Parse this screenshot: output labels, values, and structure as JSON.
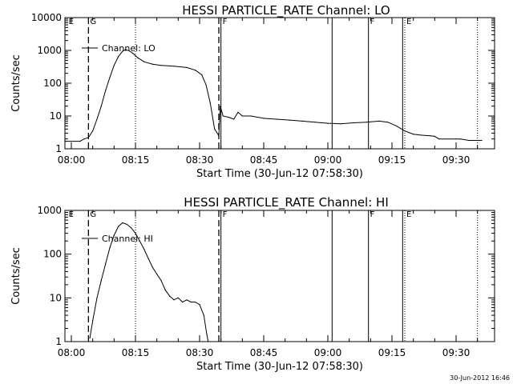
{
  "chart_data": [
    {
      "type": "line",
      "title": "HESSI PARTICLE_RATE Channel: LO",
      "xlabel": "Start Time (30-Jun-12 07:58:30)",
      "ylabel": "Counts/sec",
      "yscale": "log",
      "ylim": [
        1,
        10000
      ],
      "yticks": [
        "1",
        "10",
        "100",
        "1000",
        "10000"
      ],
      "xlim": [
        "07:58:30",
        "09:39:00"
      ],
      "xticks": [
        "08:00",
        "08:15",
        "08:30",
        "08:45",
        "09:00",
        "09:15",
        "09:30"
      ],
      "legend": {
        "entry": "Channel: LO",
        "placement": "top-left"
      },
      "series": [
        {
          "name": "Channel: LO",
          "points": [
            [
              "07:58:30",
              1.7
            ],
            [
              "08:02:00",
              1.7
            ],
            [
              "08:03:00",
              2.0
            ],
            [
              "08:04:00",
              2.2
            ],
            [
              "08:05:00",
              3.5
            ],
            [
              "08:06:00",
              8
            ],
            [
              "08:07:00",
              20
            ],
            [
              "08:08:00",
              60
            ],
            [
              "08:09:00",
              150
            ],
            [
              "08:10:00",
              350
            ],
            [
              "08:11:00",
              650
            ],
            [
              "08:12:00",
              950
            ],
            [
              "08:12:40",
              1050
            ],
            [
              "08:13:30",
              980
            ],
            [
              "08:14:30",
              800
            ],
            [
              "08:15:30",
              600
            ],
            [
              "08:17:00",
              450
            ],
            [
              "08:19:00",
              380
            ],
            [
              "08:21:00",
              350
            ],
            [
              "08:24:00",
              330
            ],
            [
              "08:27:00",
              300
            ],
            [
              "08:29:00",
              250
            ],
            [
              "08:30:30",
              180
            ],
            [
              "08:31:30",
              90
            ],
            [
              "08:32:30",
              25
            ],
            [
              "08:33:30",
              4
            ],
            [
              "08:34:30",
              2.5
            ],
            [
              "08:34:50",
              20
            ],
            [
              "08:35:30",
              10
            ],
            [
              "08:37:00",
              9
            ],
            [
              "08:38:00",
              8
            ],
            [
              "08:39:00",
              13
            ],
            [
              "08:40:00",
              10
            ],
            [
              "08:42:00",
              10
            ],
            [
              "08:45:00",
              8.5
            ],
            [
              "08:48:00",
              8
            ],
            [
              "08:51:00",
              7.5
            ],
            [
              "08:54:00",
              7
            ],
            [
              "08:57:00",
              6.5
            ],
            [
              "09:00:00",
              6
            ],
            [
              "09:03:00",
              5.8
            ],
            [
              "09:06:00",
              6.2
            ],
            [
              "09:09:00",
              6.5
            ],
            [
              "09:12:00",
              7
            ],
            [
              "09:14:00",
              6.5
            ],
            [
              "09:16:00",
              5
            ],
            [
              "09:18:00",
              3.5
            ],
            [
              "09:20:00",
              2.8
            ],
            [
              "09:22:00",
              2.6
            ],
            [
              "09:24:00",
              2.5
            ],
            [
              "09:25:00",
              2.4
            ],
            [
              "09:26:00",
              2.0
            ],
            [
              "09:30:00",
              2.0
            ],
            [
              "09:31:00",
              2.0
            ],
            [
              "09:33:00",
              1.8
            ],
            [
              "09:36:00",
              1.8
            ]
          ]
        }
      ],
      "markers": [
        {
          "time": "07:59:00",
          "style": "none",
          "label": "E"
        },
        {
          "time": "08:04:00",
          "style": "dashed",
          "label": "G"
        },
        {
          "time": "08:15:00",
          "style": "dotted",
          "label": ""
        },
        {
          "time": "08:34:30",
          "style": "dashed",
          "label": ""
        },
        {
          "time": "08:35:00",
          "style": "solid",
          "label": "F"
        },
        {
          "time": "09:01:00",
          "style": "solid",
          "label": ""
        },
        {
          "time": "09:09:30",
          "style": "solid",
          "label": "F"
        },
        {
          "time": "09:17:30",
          "style": "solid",
          "label": ""
        },
        {
          "time": "09:18:00",
          "style": "dotted",
          "label": "E"
        },
        {
          "time": "09:35:00",
          "style": "dotted",
          "label": ""
        }
      ]
    },
    {
      "type": "line",
      "title": "HESSI PARTICLE_RATE Channel: HI",
      "xlabel": "Start Time (30-Jun-12 07:58:30)",
      "ylabel": "Counts/sec",
      "yscale": "log",
      "ylim": [
        1,
        1000
      ],
      "yticks": [
        "1",
        "10",
        "100",
        "1000"
      ],
      "xlim": [
        "07:58:30",
        "09:39:00"
      ],
      "xticks": [
        "08:00",
        "08:15",
        "08:30",
        "08:45",
        "09:00",
        "09:15",
        "09:30"
      ],
      "legend": {
        "entry": "Channel: HI",
        "placement": "top-left"
      },
      "series": [
        {
          "name": "Channel: HI",
          "points": [
            [
              "08:04:20",
              1.2
            ],
            [
              "08:05:00",
              3
            ],
            [
              "08:06:00",
              10
            ],
            [
              "08:07:00",
              25
            ],
            [
              "08:08:00",
              60
            ],
            [
              "08:09:00",
              140
            ],
            [
              "08:10:00",
              270
            ],
            [
              "08:11:00",
              430
            ],
            [
              "08:12:00",
              520
            ],
            [
              "08:13:00",
              480
            ],
            [
              "08:14:00",
              400
            ],
            [
              "08:15:00",
              300
            ],
            [
              "08:16:00",
              200
            ],
            [
              "08:17:00",
              130
            ],
            [
              "08:18:00",
              80
            ],
            [
              "08:19:00",
              50
            ],
            [
              "08:20:00",
              35
            ],
            [
              "08:21:00",
              25
            ],
            [
              "08:22:00",
              15
            ],
            [
              "08:23:00",
              11
            ],
            [
              "08:24:00",
              9
            ],
            [
              "08:25:00",
              10
            ],
            [
              "08:26:00",
              8
            ],
            [
              "08:27:00",
              9
            ],
            [
              "08:28:00",
              8
            ],
            [
              "08:29:00",
              8
            ],
            [
              "08:30:00",
              7
            ],
            [
              "08:31:00",
              4
            ],
            [
              "08:31:40",
              1.5
            ],
            [
              "08:32:00",
              1.0
            ]
          ]
        }
      ],
      "markers": [
        {
          "time": "07:59:00",
          "style": "none",
          "label": "E"
        },
        {
          "time": "08:04:00",
          "style": "dashed",
          "label": "G"
        },
        {
          "time": "08:15:00",
          "style": "dotted",
          "label": ""
        },
        {
          "time": "08:34:30",
          "style": "dashed",
          "label": ""
        },
        {
          "time": "08:35:00",
          "style": "solid",
          "label": "F"
        },
        {
          "time": "09:01:00",
          "style": "solid",
          "label": ""
        },
        {
          "time": "09:09:30",
          "style": "solid",
          "label": "F"
        },
        {
          "time": "09:17:30",
          "style": "solid",
          "label": ""
        },
        {
          "time": "09:18:00",
          "style": "dotted",
          "label": "E"
        },
        {
          "time": "09:35:00",
          "style": "dotted",
          "label": ""
        }
      ]
    }
  ],
  "footer": {
    "timestamp": "30-Jun-2012 16:46"
  }
}
